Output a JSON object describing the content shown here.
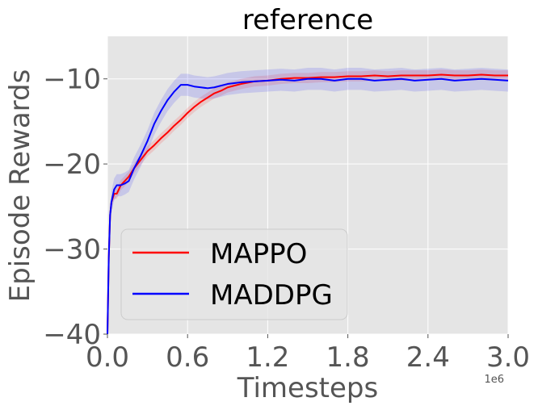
{
  "chart_data": {
    "type": "line",
    "title": "reference",
    "xlabel": "Timesteps",
    "ylabel": "Episode Rewards",
    "x_offset_label": "1e6",
    "xlim": [
      0,
      3.0
    ],
    "ylim": [
      -40,
      -5
    ],
    "xticks": [
      0.0,
      0.6,
      1.2,
      1.8,
      2.4,
      3.0
    ],
    "xtick_labels": [
      "0.0",
      "0.6",
      "1.2",
      "1.8",
      "2.4",
      "3.0"
    ],
    "yticks": [
      -40,
      -30,
      -20,
      -10
    ],
    "ytick_labels": [
      "−40",
      "−30",
      "−20",
      "−10"
    ],
    "grid": true,
    "legend_position": "lower-left",
    "series": [
      {
        "name": "MAPPO",
        "color": "#ff0000",
        "band": 0.6,
        "x": [
          0.0,
          0.01,
          0.02,
          0.03,
          0.05,
          0.07,
          0.1,
          0.13,
          0.16,
          0.2,
          0.25,
          0.3,
          0.35,
          0.4,
          0.45,
          0.5,
          0.55,
          0.6,
          0.65,
          0.7,
          0.75,
          0.8,
          0.85,
          0.9,
          0.95,
          1.0,
          1.1,
          1.2,
          1.3,
          1.4,
          1.5,
          1.6,
          1.7,
          1.8,
          1.9,
          2.0,
          2.1,
          2.2,
          2.3,
          2.4,
          2.5,
          2.6,
          2.7,
          2.8,
          2.9,
          3.0
        ],
        "y": [
          -40,
          -31,
          -26,
          -24.5,
          -23.5,
          -23.5,
          -22.5,
          -22,
          -21.5,
          -20.5,
          -19.5,
          -18.5,
          -17.8,
          -17,
          -16.3,
          -15.5,
          -14.8,
          -14,
          -13.3,
          -12.7,
          -12.2,
          -11.7,
          -11.4,
          -11,
          -10.8,
          -10.6,
          -10.3,
          -10.2,
          -10,
          -9.9,
          -9.9,
          -9.8,
          -9.8,
          -9.7,
          -9.7,
          -9.6,
          -9.7,
          -9.6,
          -9.6,
          -9.6,
          -9.5,
          -9.6,
          -9.6,
          -9.5,
          -9.6,
          -9.6
        ]
      },
      {
        "name": "MADDPG",
        "color": "#0000ff",
        "band": 1.3,
        "x": [
          0.0,
          0.01,
          0.02,
          0.03,
          0.05,
          0.07,
          0.1,
          0.13,
          0.16,
          0.2,
          0.25,
          0.3,
          0.35,
          0.4,
          0.45,
          0.5,
          0.55,
          0.6,
          0.65,
          0.7,
          0.75,
          0.8,
          0.85,
          0.9,
          0.95,
          1.0,
          1.1,
          1.2,
          1.3,
          1.4,
          1.5,
          1.6,
          1.7,
          1.8,
          1.9,
          2.0,
          2.1,
          2.2,
          2.3,
          2.4,
          2.5,
          2.6,
          2.7,
          2.8,
          2.9,
          3.0
        ],
        "y": [
          -40,
          -31,
          -26,
          -24.5,
          -23,
          -22.5,
          -22.5,
          -22.3,
          -22,
          -20.5,
          -19,
          -17.3,
          -15.3,
          -13.8,
          -12.5,
          -11.5,
          -10.7,
          -10.7,
          -10.9,
          -11,
          -11.1,
          -11,
          -10.8,
          -10.6,
          -10.5,
          -10.4,
          -10.3,
          -10.2,
          -10.1,
          -10.2,
          -10,
          -10,
          -10.2,
          -10,
          -10,
          -10.2,
          -10.1,
          -10,
          -10.2,
          -10.1,
          -10,
          -10.2,
          -10.1,
          -10,
          -10.1,
          -10.2
        ]
      }
    ]
  }
}
